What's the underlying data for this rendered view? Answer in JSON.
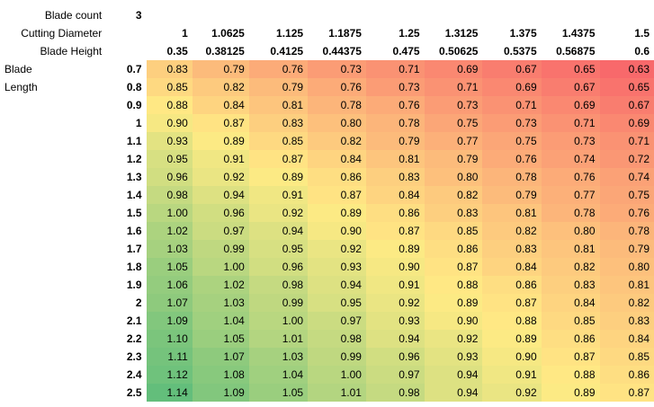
{
  "labels": {
    "blade_count": "Blade count",
    "cutting_diameter": "Cutting Diameter",
    "blade_height": "Blade Height",
    "blade": "Blade",
    "length": "Length"
  },
  "blade_count_value": "3",
  "cutting_diameters": [
    "1",
    "1.0625",
    "1.125",
    "1.1875",
    "1.25",
    "1.3125",
    "1.375",
    "1.4375",
    "1.5"
  ],
  "blade_heights": [
    "0.35",
    "0.38125",
    "0.4125",
    "0.44375",
    "0.475",
    "0.50625",
    "0.5375",
    "0.56875",
    "0.6"
  ],
  "blade_lengths": [
    "0.7",
    "0.8",
    "0.9",
    "1",
    "1.1",
    "1.2",
    "1.3",
    "1.4",
    "1.5",
    "1.6",
    "1.7",
    "1.8",
    "1.9",
    "2",
    "2.1",
    "2.2",
    "2.3",
    "2.4",
    "2.5"
  ],
  "values": [
    [
      "0.83",
      "0.79",
      "0.76",
      "0.73",
      "0.71",
      "0.69",
      "0.67",
      "0.65",
      "0.63"
    ],
    [
      "0.85",
      "0.82",
      "0.79",
      "0.76",
      "0.73",
      "0.71",
      "0.69",
      "0.67",
      "0.65"
    ],
    [
      "0.88",
      "0.84",
      "0.81",
      "0.78",
      "0.76",
      "0.73",
      "0.71",
      "0.69",
      "0.67"
    ],
    [
      "0.90",
      "0.87",
      "0.83",
      "0.80",
      "0.78",
      "0.75",
      "0.73",
      "0.71",
      "0.69"
    ],
    [
      "0.93",
      "0.89",
      "0.85",
      "0.82",
      "0.79",
      "0.77",
      "0.75",
      "0.73",
      "0.71"
    ],
    [
      "0.95",
      "0.91",
      "0.87",
      "0.84",
      "0.81",
      "0.79",
      "0.76",
      "0.74",
      "0.72"
    ],
    [
      "0.96",
      "0.92",
      "0.89",
      "0.86",
      "0.83",
      "0.80",
      "0.78",
      "0.76",
      "0.74"
    ],
    [
      "0.98",
      "0.94",
      "0.91",
      "0.87",
      "0.84",
      "0.82",
      "0.79",
      "0.77",
      "0.75"
    ],
    [
      "1.00",
      "0.96",
      "0.92",
      "0.89",
      "0.86",
      "0.83",
      "0.81",
      "0.78",
      "0.76"
    ],
    [
      "1.02",
      "0.97",
      "0.94",
      "0.90",
      "0.87",
      "0.85",
      "0.82",
      "0.80",
      "0.78"
    ],
    [
      "1.03",
      "0.99",
      "0.95",
      "0.92",
      "0.89",
      "0.86",
      "0.83",
      "0.81",
      "0.79"
    ],
    [
      "1.05",
      "1.00",
      "0.96",
      "0.93",
      "0.90",
      "0.87",
      "0.84",
      "0.82",
      "0.80"
    ],
    [
      "1.06",
      "1.02",
      "0.98",
      "0.94",
      "0.91",
      "0.88",
      "0.86",
      "0.83",
      "0.81"
    ],
    [
      "1.07",
      "1.03",
      "0.99",
      "0.95",
      "0.92",
      "0.89",
      "0.87",
      "0.84",
      "0.82"
    ],
    [
      "1.09",
      "1.04",
      "1.00",
      "0.97",
      "0.93",
      "0.90",
      "0.88",
      "0.85",
      "0.83"
    ],
    [
      "1.10",
      "1.05",
      "1.01",
      "0.98",
      "0.94",
      "0.92",
      "0.89",
      "0.86",
      "0.84"
    ],
    [
      "1.11",
      "1.07",
      "1.03",
      "0.99",
      "0.96",
      "0.93",
      "0.90",
      "0.87",
      "0.85"
    ],
    [
      "1.12",
      "1.08",
      "1.04",
      "1.00",
      "0.97",
      "0.94",
      "0.91",
      "0.88",
      "0.86"
    ],
    [
      "1.14",
      "1.09",
      "1.05",
      "1.01",
      "0.98",
      "0.94",
      "0.92",
      "0.89",
      "0.87"
    ]
  ],
  "colors": {
    "low": "#f8696b",
    "mid": "#ffeb84",
    "high": "#63be7b"
  }
}
